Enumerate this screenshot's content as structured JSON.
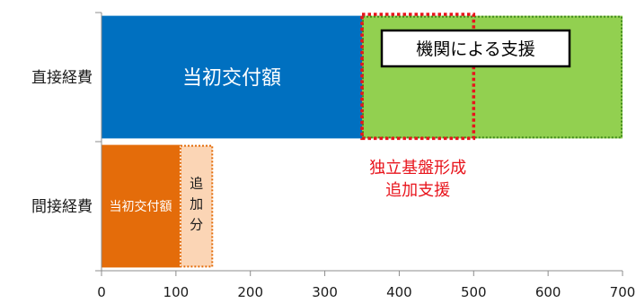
{
  "chart_data": {
    "type": "bar",
    "orientation": "horizontal",
    "stacked": true,
    "xlim": [
      0,
      700
    ],
    "x_ticks": [
      0,
      100,
      200,
      300,
      400,
      500,
      600,
      700
    ],
    "grid": false,
    "categories": [
      "直接経費",
      "間接経費"
    ],
    "series": [
      {
        "name": "当初交付額",
        "values": [
          350,
          105
        ]
      },
      {
        "name": "機関による支援",
        "values": [
          350,
          0
        ]
      },
      {
        "name": "追加分",
        "values": [
          0,
          45
        ]
      }
    ],
    "annotations": {
      "direct_initial": "当初交付額",
      "indirect_initial": "当初交付額",
      "indirect_added": [
        "追",
        "加",
        "分"
      ],
      "institution_support": "機関による支援",
      "additional_support_lines": [
        "独立基盤形成",
        "追加支援"
      ],
      "additional_support_range": [
        350,
        500
      ]
    },
    "colors": {
      "direct_initial": "#0070c0",
      "institution_support": "#92d050",
      "indirect_initial": "#e46c0a",
      "indirect_added": "#fbd5b5",
      "added_border": "#e46c0a",
      "additional_support_border": "#e8141c",
      "additional_support_text": "#e8141c"
    }
  }
}
